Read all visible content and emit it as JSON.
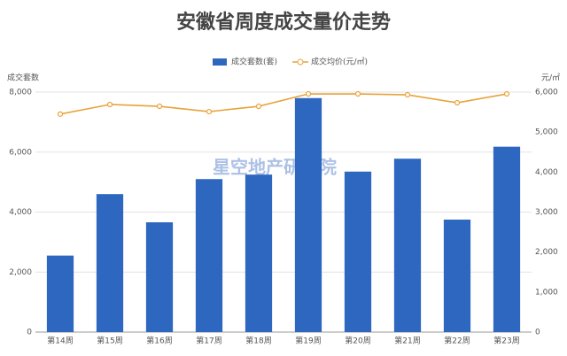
{
  "chart_data": {
    "type": "bar_line",
    "title": "安徽省周度成交量价走势",
    "y_label": "成交套数",
    "y2_label": "元/㎡",
    "watermark": "星空地产研究院",
    "categories": [
      "第14周",
      "第15周",
      "第16周",
      "第17周",
      "第18周",
      "第19周",
      "第20周",
      "第21周",
      "第22周",
      "第23周"
    ],
    "series": [
      {
        "name": "成交套数(套)",
        "type": "bar",
        "color": "#2e67c0",
        "values": [
          2550,
          4600,
          3660,
          5100,
          5250,
          7800,
          5350,
          5780,
          3750,
          6180
        ]
      },
      {
        "name": "成交均价(元/㎡)",
        "type": "line",
        "axis": "y2",
        "color": "#e8a33a",
        "values": [
          5450,
          5690,
          5645,
          5512,
          5645,
          5955,
          5955,
          5933,
          5734,
          5955
        ]
      }
    ],
    "ylim": [
      0,
      8000
    ],
    "yticks": [
      0,
      {
        "value": 2000,
        "label": "2,000"
      },
      {
        "value": 4000,
        "label": "4,000"
      },
      {
        "value": 6000,
        "label": "6,000"
      },
      {
        "value": 8000,
        "label": "8,000"
      }
    ],
    "y2lim": [
      0,
      6000
    ],
    "y2ticks": [
      0,
      {
        "value": 1000,
        "label": "1,000"
      },
      {
        "value": 2000,
        "label": "2,000"
      },
      {
        "value": 3000,
        "label": "3,000"
      },
      {
        "value": 4000,
        "label": "4,000"
      },
      {
        "value": 5000,
        "label": "5,000"
      },
      {
        "value": 6000,
        "label": "6,000"
      }
    ],
    "grid": true
  }
}
